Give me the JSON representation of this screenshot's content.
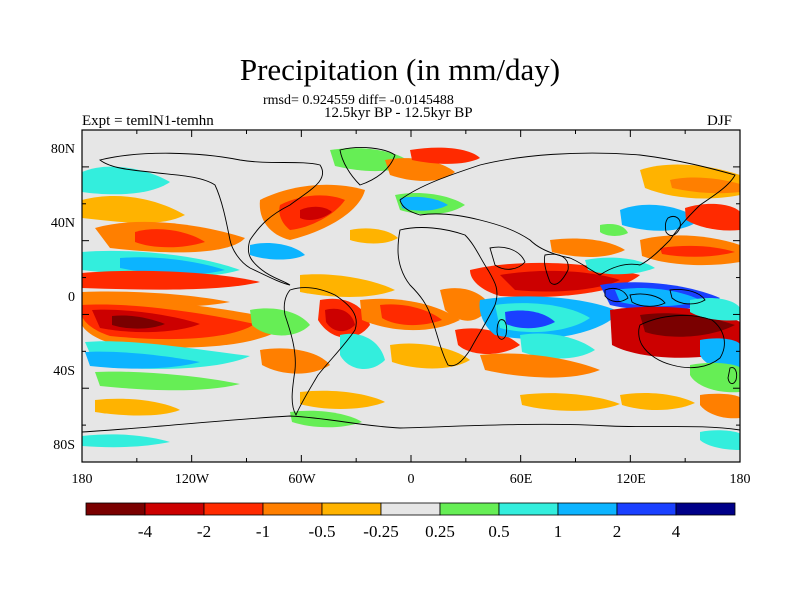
{
  "title": "Precipitation (in mm/day)",
  "stats": "rmsd= 0.924559 diff= -0.0145488",
  "period": "12.5kyr BP - 12.5kyr BP",
  "experiment": "Expt = temlN1-temhn",
  "season": "DJF",
  "lat_labels": [
    "80N",
    "40N",
    "0",
    "40S",
    "80S"
  ],
  "lon_labels": [
    "180",
    "120W",
    "60W",
    "0",
    "60E",
    "120E",
    "180"
  ],
  "colorbar": {
    "labels": [
      "-4",
      "-2",
      "-1",
      "-0.5",
      "-0.25",
      "0.25",
      "0.5",
      "1",
      "2",
      "4"
    ],
    "colors": [
      "#7a0000",
      "#cc0000",
      "#ff2a00",
      "#ff7f00",
      "#ffb300",
      "#e6e6e6",
      "#66ee55",
      "#33eedd",
      "#0cb4ff",
      "#1a40ff",
      "#000088"
    ]
  },
  "field_colors": {
    "background": "#e6e6e6",
    "dry_strong": "#cc0000",
    "dry": "#ff2a00",
    "dry_mod": "#ff7f00",
    "dry_weak": "#ffb300",
    "wet_weak": "#66ee55",
    "wet_mod": "#33eedd",
    "wet": "#0cb4ff",
    "wet_strong": "#1a40ff"
  }
}
